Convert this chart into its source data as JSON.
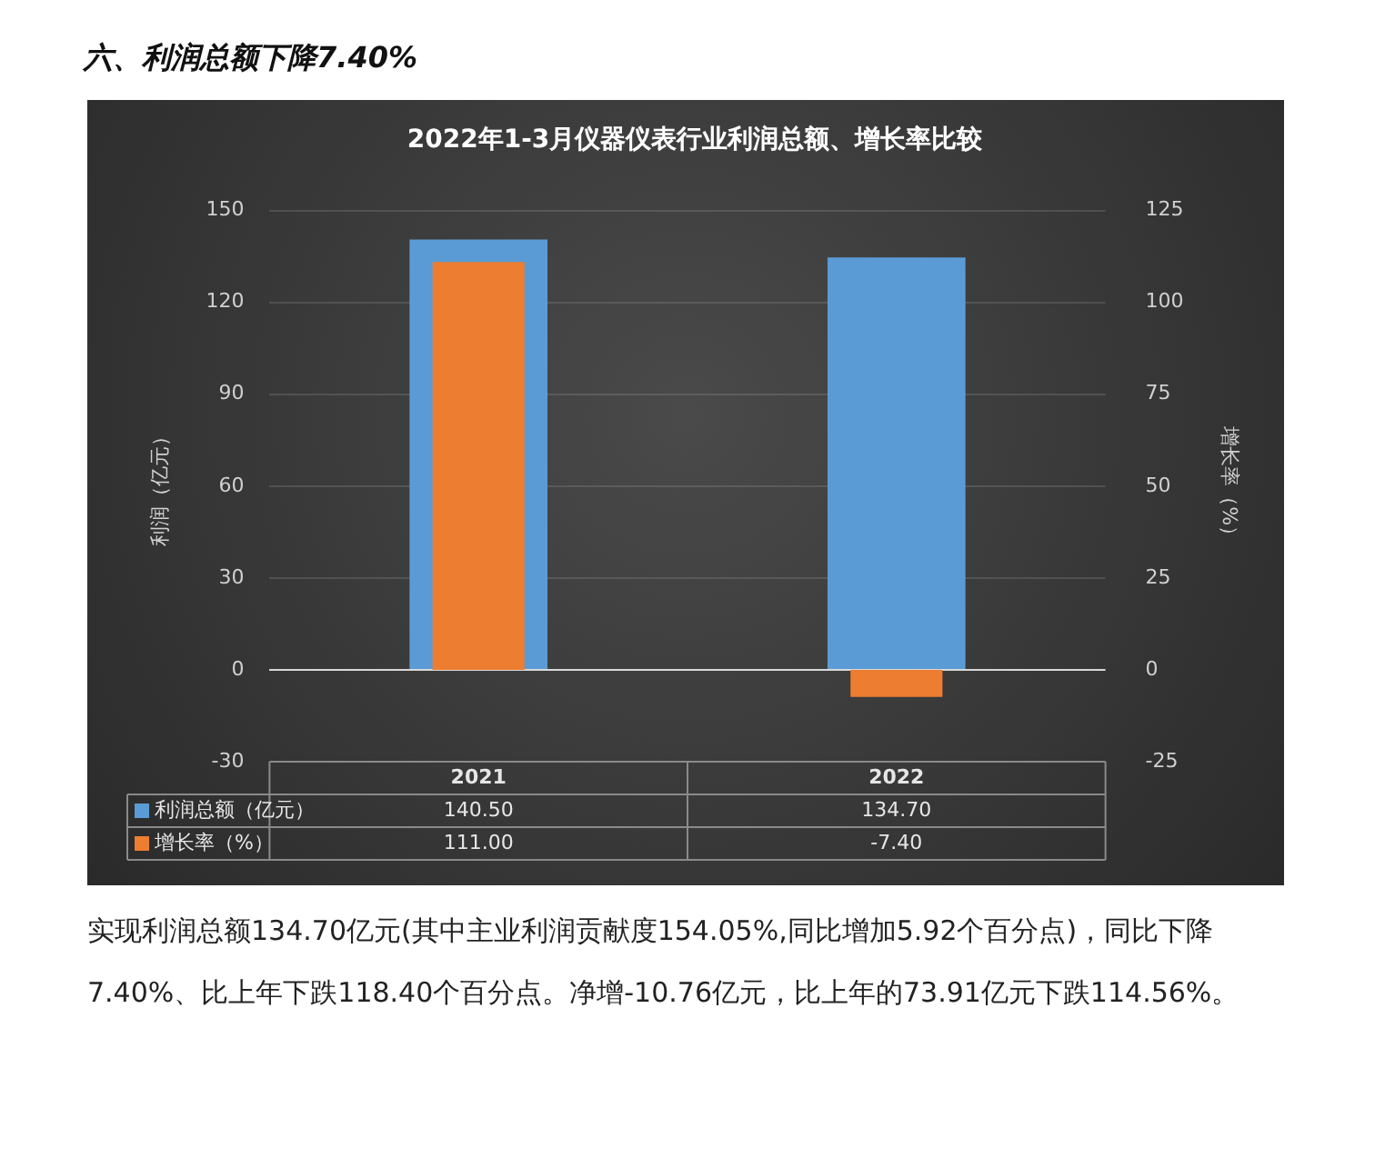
{
  "chart_data": {
    "type": "bar",
    "title": "2022年1-3月仪器仪表行业利润总额、增长率比较",
    "categories": [
      "2021",
      "2022"
    ],
    "series": [
      {
        "name": "利润总额（亿元）",
        "color": "#5b9bd5",
        "values": [
          140.5,
          134.7
        ],
        "value_labels": [
          "140.50",
          "134.70"
        ]
      },
      {
        "name": "增长率（%）",
        "color": "#ed7d31",
        "values": [
          111,
          -7.4
        ],
        "value_labels": [
          "111.00",
          "-7.40"
        ],
        "axis": "y2"
      }
    ],
    "ylabel": "利润（亿元）",
    "y2label": "增长率（%）",
    "ylim": [
      -30,
      150
    ],
    "yticks": [
      -30,
      0,
      30,
      60,
      90,
      120,
      150
    ],
    "y2lim": [
      -25,
      125
    ],
    "y2ticks": [
      -25,
      0,
      25,
      50,
      75,
      100,
      125
    ],
    "grid": "y",
    "legend": "bottom",
    "annotations": [
      "六、利润总额下降7.40%",
      "实现利润总额134.70亿元(其中主业利润贡献度154.05%,同比增加5.92个百分点)，同比下降7.40%、比上年下跌118.40个百分点。净增-10.76亿元，比上年的73.91亿元下跌114.56%。"
    ]
  }
}
